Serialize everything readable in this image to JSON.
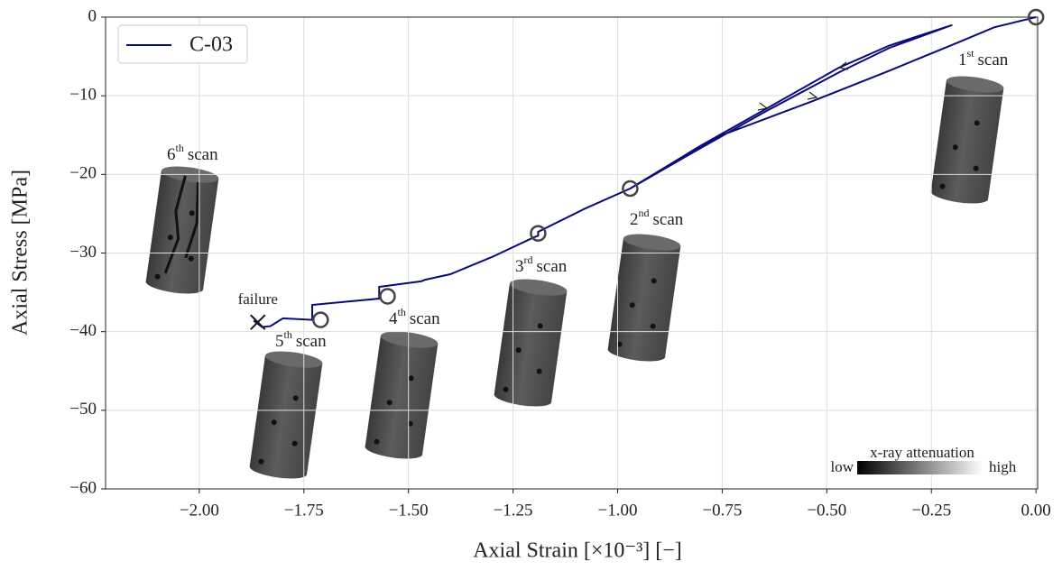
{
  "chart_data": {
    "type": "line",
    "xlabel": "Axial Strain [×10⁻³] [−]",
    "ylabel": "Axial Stress [MPa]",
    "xlim": [
      -2.224,
      0.004
    ],
    "ylim": [
      -60,
      0
    ],
    "xticks": [
      {
        "value": -2,
        "label": "−2.00"
      },
      {
        "value": -1.75,
        "label": "−1.75"
      },
      {
        "value": -1.5,
        "label": "−1.50"
      },
      {
        "value": -1.25,
        "label": "−1.25"
      },
      {
        "value": -1,
        "label": "−1.00"
      },
      {
        "value": -0.75,
        "label": "−0.75"
      },
      {
        "value": -0.5,
        "label": "−0.50"
      },
      {
        "value": -0.25,
        "label": "−0.25"
      },
      {
        "value": 0,
        "label": "0.00"
      }
    ],
    "yticks": [
      0,
      {
        "value": -10,
        "label": "−10"
      },
      {
        "value": -20,
        "label": "−20"
      },
      {
        "value": -30,
        "label": "−30"
      },
      {
        "value": -40,
        "label": "−40"
      },
      {
        "value": -50,
        "label": "−50"
      },
      {
        "value": -60,
        "label": "−60"
      }
    ],
    "grid": true,
    "legend": "upper left",
    "series": [
      {
        "name": "C-03",
        "color": "#0a0a7a",
        "x": [
          0,
          -0.1,
          -0.19,
          -0.35,
          -0.535,
          -0.75,
          -0.86,
          -0.97,
          -0.8,
          -0.643,
          -0.47,
          -0.35,
          -0.2,
          -0.35,
          -0.47,
          -0.643,
          -0.8,
          -0.97,
          -1.08,
          -1.19,
          -1.19,
          -1.2,
          -1.3,
          -1.4,
          -1.46,
          -1.47,
          -1.57,
          -1.57,
          -1.65,
          -1.73,
          -1.73,
          -1.8,
          -1.83,
          -1.85,
          -1.87
        ],
        "values": [
          0,
          -1.3,
          -3.3,
          -6.8,
          -10.7,
          -15.0,
          -18.4,
          -21.8,
          -16.3,
          -11.6,
          -6.4,
          -3.6,
          -1.0,
          -3.9,
          -7.0,
          -11.9,
          -16.6,
          -21.8,
          -24.4,
          -27.3,
          -27.8,
          -28.0,
          -30.5,
          -32.7,
          -33.4,
          -33.6,
          -34.3,
          -35.8,
          -36.2,
          -36.6,
          -38.5,
          -38.3,
          -39.3,
          -39.4,
          -38.6
        ]
      }
    ],
    "scan_points": {
      "x": [
        0,
        -0.97,
        -1.19,
        -1.55,
        -1.71
      ],
      "y": [
        0,
        -21.8,
        -27.5,
        -35.5,
        -38.5
      ]
    },
    "scans": [
      {
        "ordinal": "1",
        "suffix": "st",
        "word": "scan"
      },
      {
        "ordinal": "2",
        "suffix": "nd",
        "word": "scan"
      },
      {
        "ordinal": "3",
        "suffix": "rd",
        "word": "scan"
      },
      {
        "ordinal": "4",
        "suffix": "th",
        "word": "scan"
      },
      {
        "ordinal": "5",
        "suffix": "th",
        "word": "scan"
      },
      {
        "ordinal": "6",
        "suffix": "th",
        "word": "scan"
      }
    ],
    "failure": {
      "text": "failure",
      "x": -1.86,
      "y": -38.8
    },
    "colorbar": {
      "title": "x-ray attenuation",
      "low": "low",
      "high": "high"
    }
  }
}
